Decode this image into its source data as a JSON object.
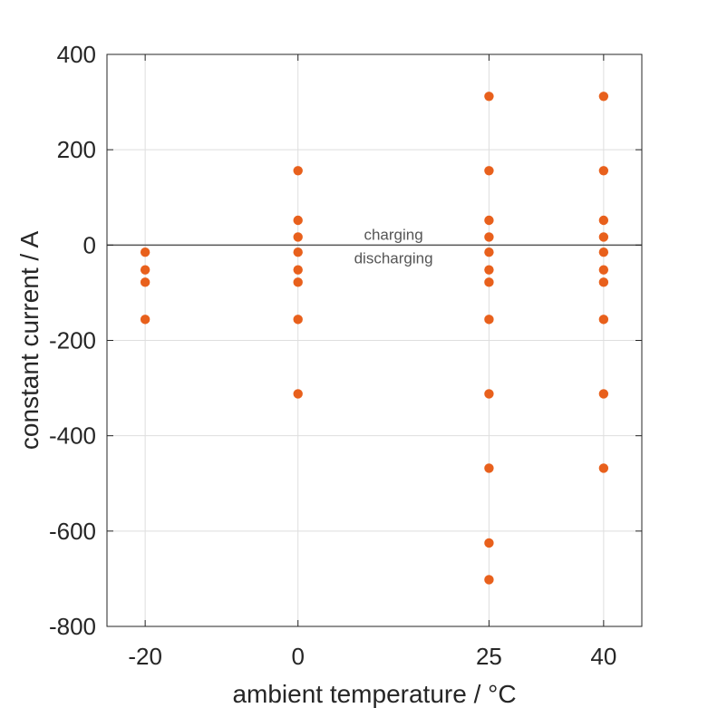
{
  "chart_data": {
    "type": "scatter",
    "title": "",
    "xlabel": "ambient temperature / °C",
    "ylabel": "constant current / A",
    "x_ticks": [
      "-20",
      "0",
      "25",
      "40"
    ],
    "y_ticks": [
      "400",
      "200",
      "0",
      "-200",
      "-400",
      "-600",
      "-800"
    ],
    "xlim": [
      -25,
      45
    ],
    "ylim": [
      -800,
      400
    ],
    "grid": true,
    "zero_line": true,
    "marker_color": "#E8601C",
    "annotations": {
      "above_zero": "charging",
      "below_zero": "discharging"
    },
    "series": [
      {
        "points": [
          {
            "x": -20,
            "y": -15
          },
          {
            "x": -20,
            "y": -52
          },
          {
            "x": -20,
            "y": -78
          },
          {
            "x": -20,
            "y": -156
          },
          {
            "x": 0,
            "y": 156
          },
          {
            "x": 0,
            "y": 52
          },
          {
            "x": 0,
            "y": 17
          },
          {
            "x": 0,
            "y": -15
          },
          {
            "x": 0,
            "y": -52
          },
          {
            "x": 0,
            "y": -78
          },
          {
            "x": 0,
            "y": -156
          },
          {
            "x": 0,
            "y": -312
          },
          {
            "x": 25,
            "y": 312
          },
          {
            "x": 25,
            "y": 156
          },
          {
            "x": 25,
            "y": 52
          },
          {
            "x": 25,
            "y": 17
          },
          {
            "x": 25,
            "y": -15
          },
          {
            "x": 25,
            "y": -52
          },
          {
            "x": 25,
            "y": -78
          },
          {
            "x": 25,
            "y": -156
          },
          {
            "x": 25,
            "y": -312
          },
          {
            "x": 25,
            "y": -468
          },
          {
            "x": 25,
            "y": -625
          },
          {
            "x": 25,
            "y": -702
          },
          {
            "x": 40,
            "y": 312
          },
          {
            "x": 40,
            "y": 156
          },
          {
            "x": 40,
            "y": 52
          },
          {
            "x": 40,
            "y": 17
          },
          {
            "x": 40,
            "y": -15
          },
          {
            "x": 40,
            "y": -52
          },
          {
            "x": 40,
            "y": -78
          },
          {
            "x": 40,
            "y": -156
          },
          {
            "x": 40,
            "y": -312
          },
          {
            "x": 40,
            "y": -468
          }
        ]
      }
    ]
  }
}
